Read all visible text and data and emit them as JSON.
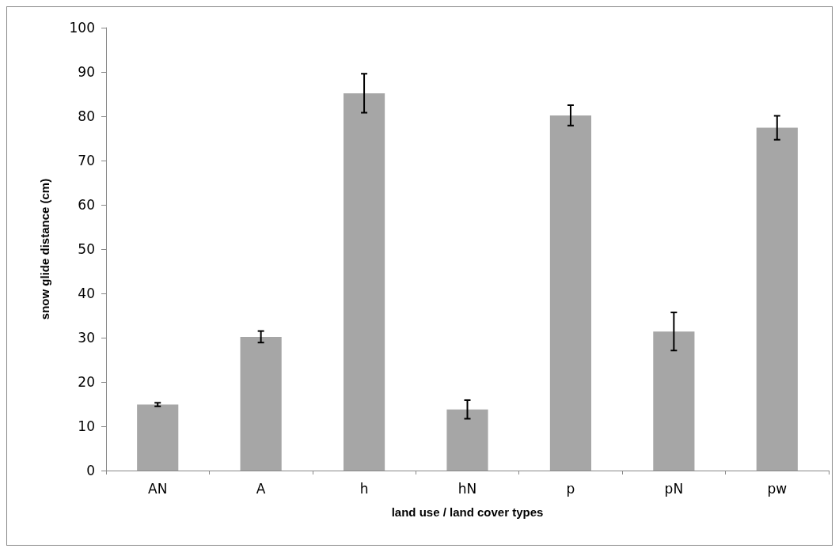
{
  "chart_data": {
    "type": "bar",
    "xlabel": "land use / land cover types",
    "ylabel": "snow glide distance (cm)",
    "categories": [
      "AN",
      "A",
      "h",
      "hN",
      "p",
      "pN",
      "pw"
    ],
    "values": [
      14.9,
      30.2,
      85.2,
      13.8,
      80.2,
      31.4,
      77.4
    ],
    "errors": [
      0.4,
      1.3,
      4.4,
      2.1,
      2.3,
      4.3,
      2.7
    ],
    "color": "#a6a6a6",
    "ylim": [
      0,
      100
    ],
    "yticks": [
      0,
      10,
      20,
      30,
      40,
      50,
      60,
      70,
      80,
      90,
      100
    ],
    "grid": false
  }
}
